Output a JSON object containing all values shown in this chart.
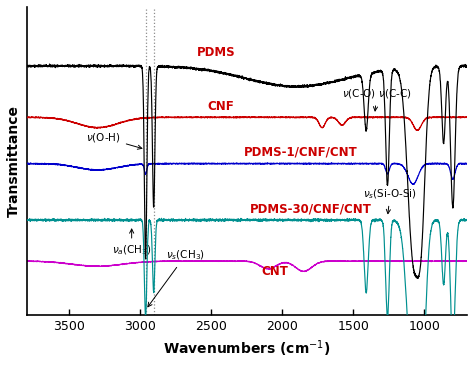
{
  "xmin": 700,
  "xmax": 3800,
  "xlabel": "Wavenumbers (cm$^{-1}$)",
  "ylabel": "Transmittance",
  "colors": {
    "PDMS": "#000000",
    "CNF": "#cc0000",
    "PDMS1": "#0000cc",
    "PDMS30": "#009090",
    "CNT": "#cc00cc"
  },
  "offsets": {
    "PDMS": 0.82,
    "CNF": 0.62,
    "PDMS1": 0.44,
    "PDMS30": 0.22,
    "CNT": 0.06
  }
}
